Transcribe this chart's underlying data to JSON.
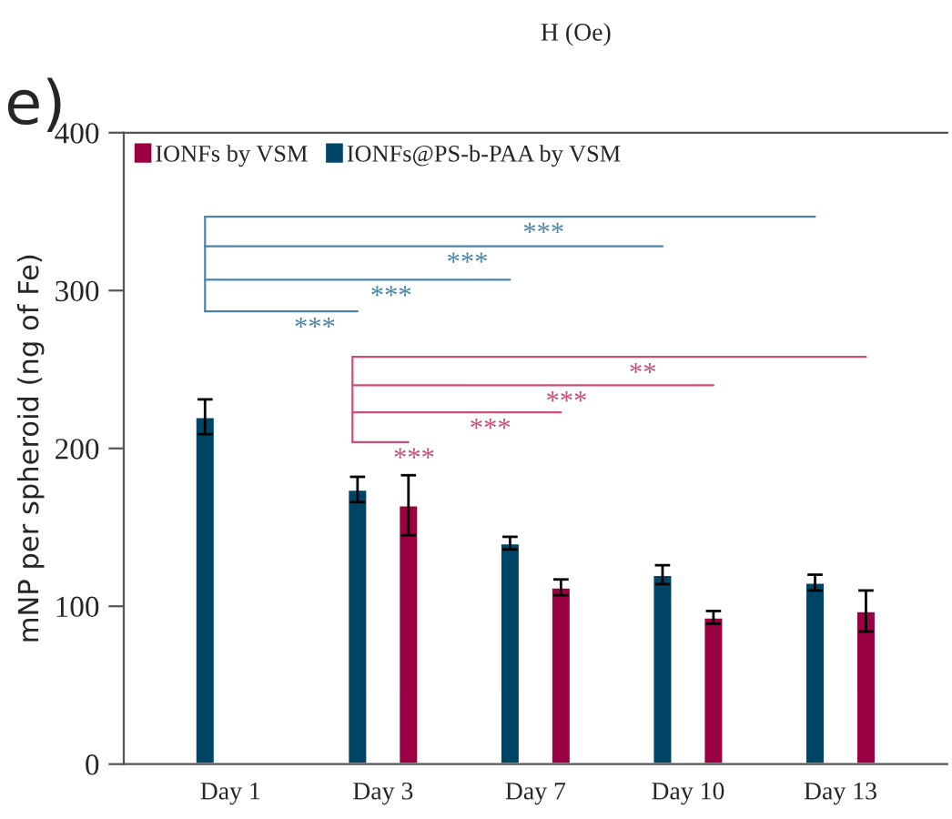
{
  "chart_data": {
    "type": "bar",
    "categories": [
      "Day 1",
      "Day 3",
      "Day 7",
      "Day 10",
      "Day 13"
    ],
    "ylabel": "mNP per spheroid (ng of Fe)",
    "series": [
      {
        "name": "IONFs by VSM",
        "color": "#9b0042",
        "values": [
          null,
          164,
          112,
          93,
          97
        ],
        "errors": [
          null,
          19,
          5,
          4,
          13
        ]
      },
      {
        "name": "IONFs@PS-b-PAA by VSM",
        "color": "#004466",
        "values": [
          220,
          174,
          140,
          120,
          115
        ],
        "errors": [
          11,
          8,
          4,
          6,
          5
        ]
      }
    ],
    "ylim": [
      0,
      400
    ],
    "yticks": [
      0,
      100,
      200,
      300,
      400
    ],
    "legend": "top left",
    "grid": false,
    "annotations": [
      "***",
      "***",
      "***",
      "***",
      "***",
      "***",
      "***",
      "**",
      "e)",
      "H (Oe)"
    ]
  }
}
